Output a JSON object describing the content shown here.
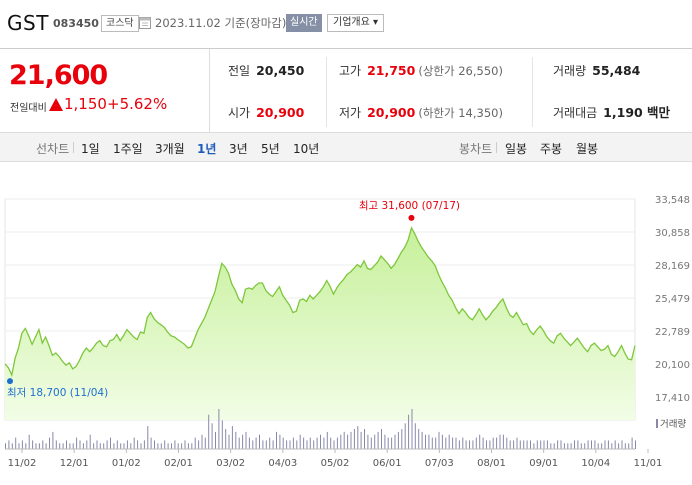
{
  "header": {
    "name": "GST",
    "code": "083450",
    "market": "코스닥",
    "date": "2023.11.02 기준(장마감)",
    "realtime": "실시간",
    "company_info": "기업개요 ▾"
  },
  "quote": {
    "price": "21,600",
    "change_label": "전일대비",
    "change": "1,150",
    "change_pct": "+5.62%",
    "prev_close_label": "전일",
    "prev_close": "20,450",
    "open_label": "시가",
    "open": "20,900",
    "high_label": "고가",
    "high": "21,750",
    "upper_limit": "(상한가 26,550)",
    "low_label": "저가",
    "low": "20,900",
    "lower_limit": "(하한가 14,350)",
    "volume_label": "거래량",
    "volume": "55,484",
    "amount_label": "거래대금",
    "amount": "1,190 백만"
  },
  "tabs": {
    "line_label": "선차트",
    "line": [
      "1일",
      "1주일",
      "3개월",
      "1년",
      "3년",
      "5년",
      "10년"
    ],
    "selected": "1년",
    "candle_label": "봉차트",
    "candle": [
      "일봉",
      "주봉",
      "월봉"
    ]
  },
  "chart_data": {
    "type": "area",
    "x_ticks": [
      "11/02",
      "12/01",
      "01/02",
      "02/01",
      "03/02",
      "04/03",
      "05/02",
      "06/01",
      "07/03",
      "08/01",
      "09/01",
      "10/04",
      "11/01"
    ],
    "y_ticks": [
      33548,
      30858,
      28169,
      25479,
      22789,
      20100,
      17410
    ],
    "ylim": [
      17410,
      33548
    ],
    "high_annotation": "최고 31,600 (07/17)",
    "low_annotation": "최저 18,700 (11/04)",
    "volume_legend": "거래량",
    "colors": {
      "line": "#7ec73c",
      "fill_top": "#c6f09a",
      "fill_bottom": "#f2fde6",
      "high": "#e8000b",
      "low": "#1e6fd0",
      "volume": "#8888aa"
    },
    "prices": [
      20100,
      19800,
      19200,
      20600,
      21400,
      22600,
      23000,
      22400,
      21700,
      22300,
      22900,
      21800,
      22300,
      21600,
      20800,
      21000,
      20700,
      20300,
      20000,
      20200,
      19700,
      19900,
      20400,
      21000,
      21400,
      21100,
      21400,
      21800,
      22000,
      21600,
      21500,
      22000,
      22100,
      22500,
      22000,
      22400,
      22900,
      22600,
      22300,
      22100,
      22700,
      22600,
      23900,
      24300,
      23800,
      23500,
      23300,
      23100,
      22700,
      22400,
      22300,
      22100,
      21900,
      21700,
      21400,
      21500,
      22200,
      22900,
      23400,
      23900,
      24600,
      25300,
      26000,
      27200,
      28300,
      28000,
      27500,
      26600,
      26100,
      25400,
      25100,
      26200,
      26300,
      26200,
      26500,
      26700,
      26700,
      26100,
      25800,
      25600,
      26000,
      26400,
      25700,
      25300,
      24900,
      24300,
      24400,
      25300,
      25400,
      25200,
      25700,
      25400,
      25700,
      26000,
      26400,
      26900,
      26400,
      25800,
      26300,
      26700,
      27000,
      27400,
      27600,
      27900,
      28200,
      28000,
      28500,
      27900,
      27800,
      28100,
      28400,
      28900,
      28600,
      28300,
      27900,
      28200,
      28700,
      29200,
      29600,
      30200,
      31200,
      30700,
      30100,
      29600,
      29200,
      28800,
      28500,
      28100,
      27400,
      26800,
      26300,
      25700,
      25300,
      24700,
      24200,
      24600,
      24300,
      23900,
      23700,
      24100,
      24600,
      24100,
      23700,
      24000,
      24400,
      24700,
      25100,
      25400,
      24700,
      24100,
      23900,
      24300,
      23800,
      23300,
      23400,
      22800,
      22500,
      22900,
      23200,
      22800,
      22300,
      22000,
      21800,
      22400,
      22600,
      22200,
      21900,
      21600,
      21900,
      22200,
      21800,
      21400,
      21100,
      21600,
      21800,
      21500,
      21200,
      21300,
      21600,
      20900,
      20700,
      21100,
      21600,
      21000,
      20500,
      20450,
      21600
    ],
    "volumes": [
      2,
      3,
      2,
      4,
      2,
      3,
      2,
      5,
      3,
      2,
      2,
      3,
      2,
      4,
      6,
      3,
      2,
      2,
      3,
      2,
      2,
      4,
      3,
      2,
      3,
      5,
      2,
      3,
      2,
      2,
      3,
      4,
      2,
      3,
      2,
      2,
      3,
      2,
      4,
      3,
      2,
      3,
      8,
      4,
      3,
      2,
      2,
      3,
      2,
      2,
      3,
      2,
      2,
      3,
      2,
      2,
      4,
      3,
      5,
      4,
      12,
      9,
      6,
      14,
      10,
      7,
      5,
      8,
      6,
      4,
      5,
      6,
      4,
      3,
      4,
      5,
      3,
      3,
      4,
      3,
      6,
      5,
      4,
      3,
      3,
      4,
      3,
      5,
      4,
      3,
      4,
      3,
      4,
      5,
      4,
      6,
      4,
      3,
      4,
      5,
      6,
      5,
      6,
      7,
      8,
      6,
      7,
      5,
      4,
      5,
      6,
      7,
      5,
      4,
      4,
      5,
      6,
      7,
      9,
      12,
      14,
      9,
      7,
      6,
      5,
      5,
      4,
      4,
      6,
      5,
      4,
      5,
      4,
      4,
      3,
      4,
      3,
      3,
      3,
      4,
      5,
      4,
      3,
      3,
      4,
      4,
      5,
      5,
      4,
      3,
      3,
      4,
      3,
      3,
      3,
      3,
      2,
      3,
      3,
      3,
      3,
      2,
      2,
      3,
      3,
      2,
      2,
      2,
      3,
      3,
      2,
      2,
      3,
      3,
      3,
      2,
      2,
      3,
      3,
      2,
      3,
      2,
      3,
      2,
      2,
      4,
      3
    ]
  }
}
